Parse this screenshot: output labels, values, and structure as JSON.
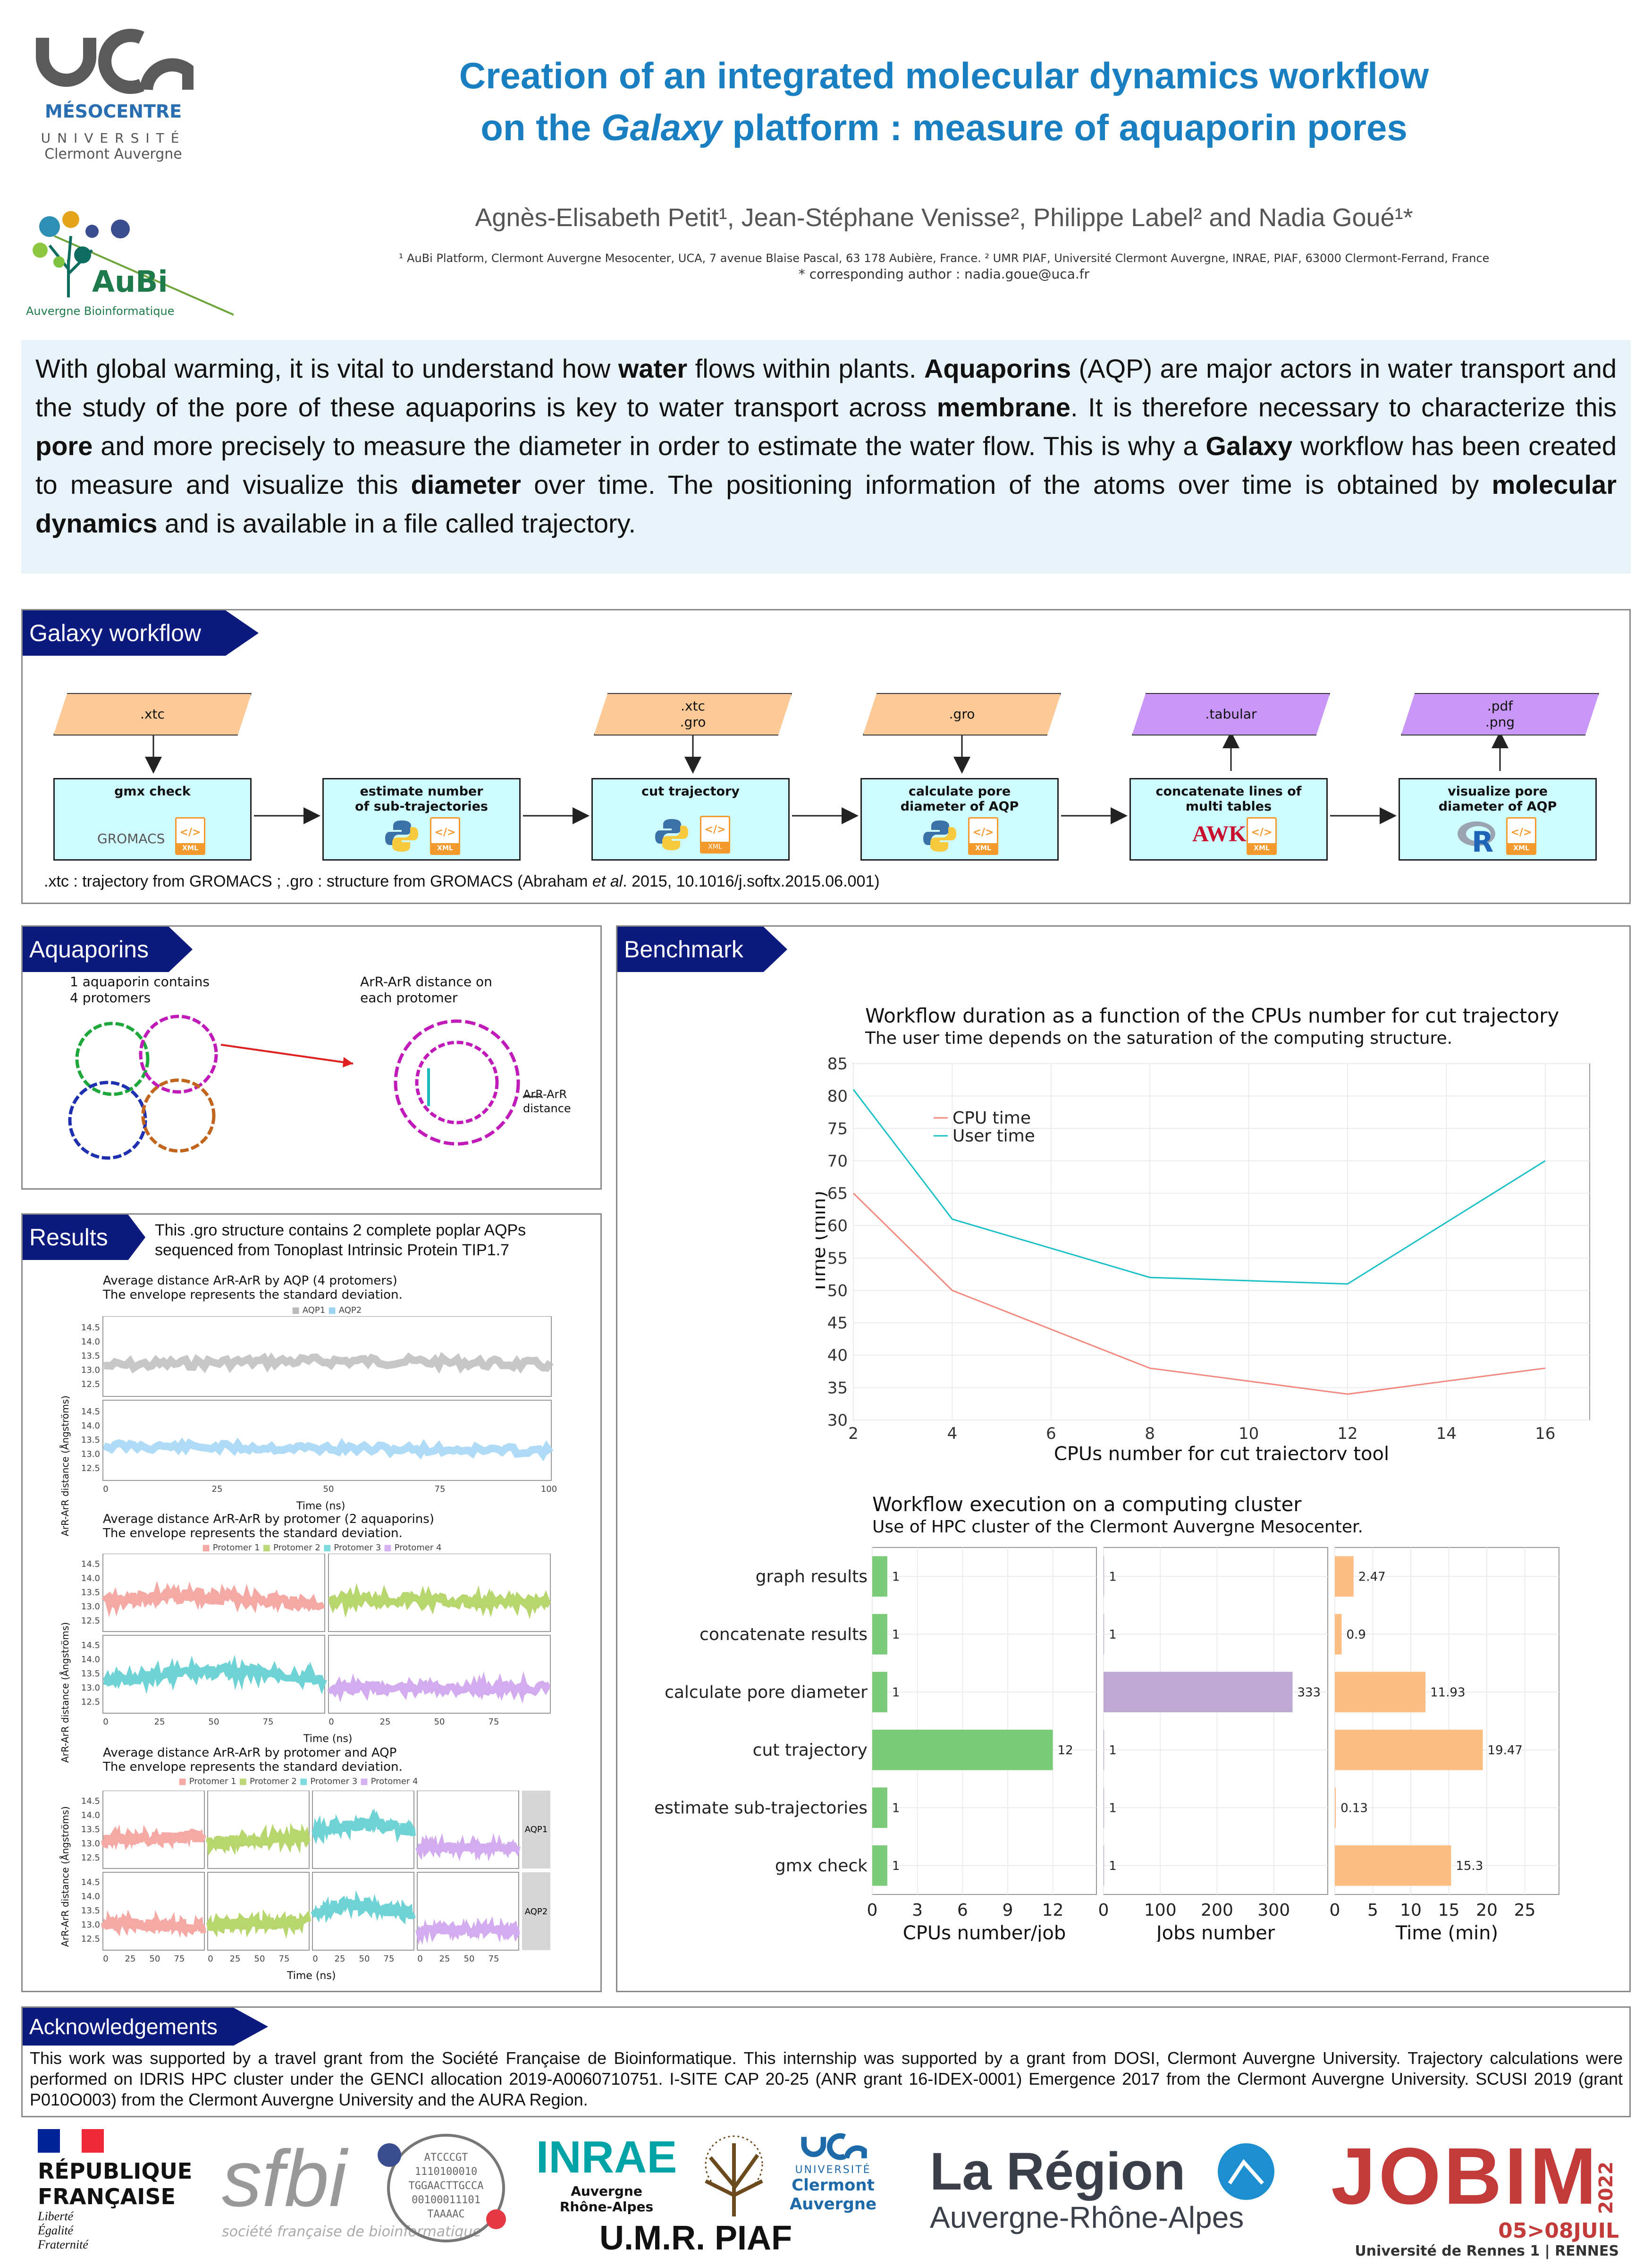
{
  "header": {
    "title_line1": "Creation of an integrated molecular dynamics workflow",
    "title_line2_pre": "on the ",
    "title_line2_em": "Galaxy",
    "title_line2_post": " platform : measure of aquaporin pores",
    "authors": "Agnès-Elisabeth Petit¹, Jean-Stéphane Venisse², Philippe Label² and Nadia Goué¹*",
    "affiliations": "¹ AuBi Platform, Clermont Auvergne Mesocenter, UCA, 7 avenue Blaise Pascal, 63 178 Aubière, France. ² UMR PIAF, Université Clermont Auvergne, INRAE, PIAF, 63000 Clermont-Ferrand, France",
    "corresponding": "* corresponding author : nadia.goue@uca.fr"
  },
  "logos": {
    "uca_mesocentre": "MÉSOCENTRE",
    "uca_universite": "UNIVERSITÉ",
    "uca_clermont": "Clermont Auvergne",
    "aubi": "AuBi",
    "aubi_sub": "Auvergne Bioinformatique"
  },
  "intro": {
    "p1": "With global warming, it is vital to understand how ",
    "b1": "water",
    "p2": " flows within plants. ",
    "b2": "Aquaporins",
    "p3": " (AQP) are major actors in water transport and the study of the pore of these aquaporins is key to water transport across ",
    "b3": "membrane",
    "p4": ". It is therefore necessary to characterize this ",
    "b4": "pore",
    "p5": " and more precisely to measure the diameter in order to estimate the water flow. This is why a ",
    "b5": "Galaxy",
    "p6": " workflow has been created to measure and visualize this ",
    "b6": "diameter",
    "p7": " over time. The positioning information of the atoms over time is obtained by ",
    "b7": "molecular dynamics",
    "p8": " and is available in a file called trajectory."
  },
  "workflow": {
    "heading": "Galaxy workflow",
    "inputs": [
      ".xtc",
      ".xtc\n.gro",
      ".gro"
    ],
    "outputs": [
      ".tabular",
      ".pdf\n.png"
    ],
    "steps": [
      "gmx check",
      "estimate number\nof sub-trajectories",
      "cut trajectory",
      "calculate pore\ndiameter of AQP",
      "concatenate lines of\nmulti tables",
      "visualize pore\ndiameter of AQP"
    ],
    "gromacs": "GROMACS",
    "awk": "AWK",
    "xml_label": "XML",
    "footnote_pre": ".xtc : trajectory from GROMACS ; .gro : structure from GROMACS (Abraham ",
    "footnote_em": "et al",
    "footnote_post": ". 2015, 10.1016/j.softx.2015.06.001)",
    "colors": {
      "input": "#fdc997",
      "output": "#c897f7",
      "tool": "#cdfbff"
    }
  },
  "aquaporins": {
    "heading": "Aquaporins",
    "label1": "1 aquaporin contains\n4 protomers",
    "label2": "ArR-ArR distance on\neach protomer",
    "label3": "ArR-ArR\ndistance"
  },
  "results": {
    "heading": "Results",
    "note": "This .gro structure contains 2 complete poplar AQPs\nsequenced from Tonoplast Intrinsic Protein TIP1.7",
    "plot1": {
      "title": "Average distance ArR-ArR by AQP (4 protomers)",
      "subtitle": "The envelope represents the standard deviation.",
      "legend": [
        "AQP1",
        "AQP2"
      ],
      "ylabel": "ArR-ArR distance (Ångströms)",
      "xlabel": "Time (ns)",
      "xticks": [
        "0",
        "25",
        "50",
        "75",
        "100"
      ],
      "yticks": [
        "14.5",
        "14.0",
        "13.5",
        "13.0",
        "12.5"
      ]
    },
    "plot2": {
      "title": "Average distance ArR-ArR by protomer (2 aquaporins)",
      "subtitle": "The envelope represents the standard deviation.",
      "legend": [
        "Protomer 1",
        "Protomer 2",
        "Protomer 3",
        "Protomer 4"
      ],
      "ylabel": "ArR-ArR distance (Ångströms)",
      "xlabel": "Time (ns)",
      "xticks": [
        "0",
        "25",
        "50",
        "75"
      ],
      "yticks": [
        "14.5",
        "14.0",
        "13.5",
        "13.0",
        "12.5"
      ]
    },
    "plot3": {
      "title": "Average distance ArR-ArR by protomer and AQP",
      "subtitle": "The envelope represents the standard deviation.",
      "legend": [
        "Protomer 1",
        "Protomer 2",
        "Protomer 3",
        "Protomer 4"
      ],
      "ylabel": "ArR-ArR distance (Ångströms)",
      "xlabel": "Time (ns)",
      "facets": [
        "AQP1",
        "AQP2"
      ],
      "xticks": [
        "0",
        "25",
        "50",
        "75"
      ],
      "yticks": [
        "14.5",
        "14.0",
        "13.5",
        "13.0",
        "12.5"
      ]
    }
  },
  "benchmark": {
    "heading": "Benchmark"
  },
  "chart_data": [
    {
      "type": "line",
      "title": "Workflow duration as a function of the CPUs number for cut trajectory",
      "subtitle": "The user time depends on the saturation of the computing structure.",
      "xlabel": "CPUs number for cut trajectory tool",
      "ylabel": "Time (min)",
      "x": [
        2,
        4,
        8,
        12,
        16
      ],
      "xticks": [
        2,
        4,
        6,
        8,
        10,
        12,
        14,
        16
      ],
      "yticks": [
        30,
        35,
        40,
        45,
        50,
        55,
        60,
        65,
        70,
        75,
        80,
        85
      ],
      "xlim": [
        2,
        16.9
      ],
      "ylim": [
        30,
        85
      ],
      "series": [
        {
          "name": "CPU time",
          "color": "#f4877e",
          "values": [
            65,
            50,
            38,
            34,
            38
          ]
        },
        {
          "name": "User time",
          "color": "#19c1c6",
          "values": [
            81,
            61,
            52,
            51,
            70
          ]
        }
      ],
      "legend": "top-left"
    },
    {
      "type": "bar",
      "title": "Workflow execution on a computing cluster",
      "subtitle": "Use of HPC cluster of the Clermont Auvergne Mesocenter.",
      "categories": [
        "graph results",
        "concatenate results",
        "calculate pore diameter",
        "cut trajectory",
        "estimate sub-trajectories",
        "gmx check"
      ],
      "panels": [
        {
          "xlabel": "CPUs number/job",
          "color": "#7ccb7a",
          "values": [
            1,
            1,
            1,
            12,
            1,
            1
          ],
          "labels": [
            "1",
            "1",
            "1",
            "12",
            "1",
            "1"
          ],
          "xticks": [
            0,
            3,
            6,
            9,
            12
          ],
          "xlim": [
            0,
            14.9
          ]
        },
        {
          "xlabel": "Jobs number",
          "color": "#bea9d3",
          "values": [
            1,
            1,
            333,
            1,
            1,
            1
          ],
          "labels": [
            "1",
            "1",
            "333",
            "1",
            "1",
            "1"
          ],
          "xticks": [
            0,
            100,
            200,
            300
          ],
          "xlim": [
            0,
            395
          ]
        },
        {
          "xlabel": "Time (min)",
          "color": "#fdbe84",
          "values": [
            2.47,
            0.9,
            11.93,
            19.47,
            0.13,
            15.3
          ],
          "labels": [
            "2.47",
            "0.9",
            "11.93",
            "19.47",
            "0.13",
            "15.3"
          ],
          "xticks": [
            0,
            5,
            10,
            15,
            20,
            25
          ],
          "xlim": [
            0,
            29.5
          ]
        }
      ]
    }
  ],
  "acknowledgements": {
    "heading": "Acknowledgements",
    "text": "This work was supported by a travel grant from the Société Française de Bioinformatique. This internship was supported by a grant from DOSI, Clermont Auvergne University. Trajectory calculations were performed on IDRIS HPC cluster under the GENCI allocation 2019-A0060710751. I-SITE CAP 20-25 (ANR grant 16-IDEX-0001) Emergence 2017 from the Clermont Auvergne University. SCUSI 2019 (grant P010O003) from the Clermont Auvergne University and the AURA Region."
  },
  "footer_logos": {
    "rf1": "RÉPUBLIQUE",
    "rf2": "FRANÇAISE",
    "rf3": "Liberté",
    "rf4": "Égalité",
    "rf5": "Fraternité",
    "sfbi": "sfbi",
    "sfbi_sub": "société française de bioinformatique",
    "inrae": "INRAE",
    "inrae_sub1": "Auvergne",
    "inrae_sub2": "Rhône-Alpes",
    "uca2_1": "UNIVERSITÉ",
    "uca2_2": "Clermont",
    "uca2_3": "Auvergne",
    "piaf": "U.M.R. PIAF",
    "region1": "La Région",
    "region2": "Auvergne-Rhône-Alpes",
    "jobim1": "JOBIM",
    "jobim_year": "2022",
    "jobim2": "05>08JUIL",
    "jobim3": "Université de Rennes 1 | RENNES"
  }
}
